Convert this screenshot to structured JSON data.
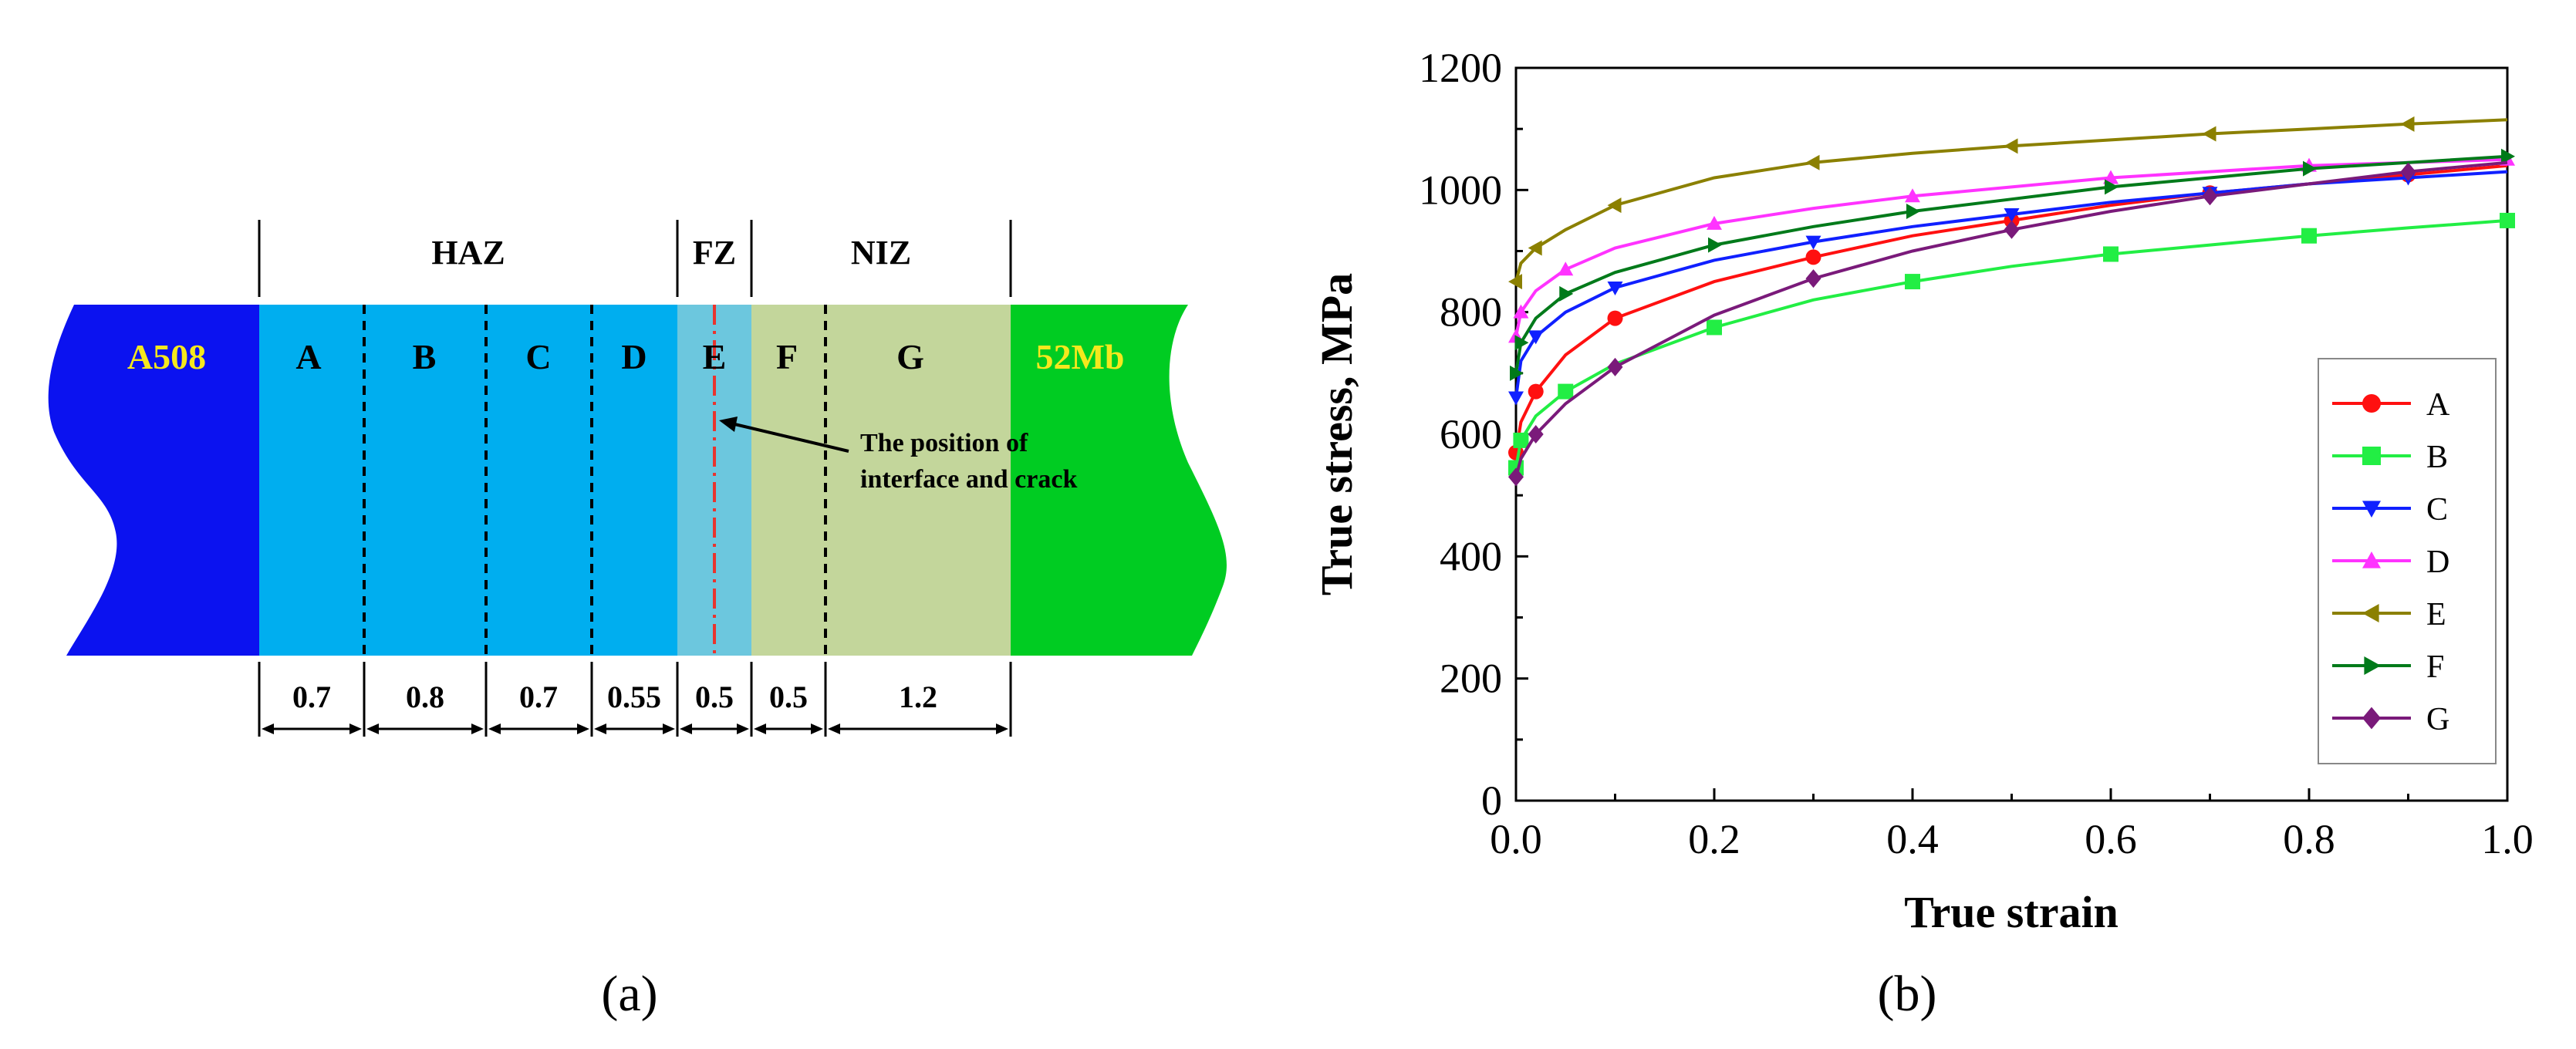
{
  "panel_a": {
    "caption": "(a)",
    "groups": {
      "haz": "HAZ",
      "fz": "FZ",
      "niz": "NIZ"
    },
    "base_metal": "A508",
    "weld_metal": "52Mb",
    "zones": [
      "A",
      "B",
      "C",
      "D",
      "E",
      "F",
      "G"
    ],
    "widths": [
      "0.7",
      "0.8",
      "0.7",
      "0.55",
      "0.5",
      "0.5",
      "1.2"
    ],
    "annotation": [
      "The position of",
      "interface and crack"
    ],
    "colors": {
      "a508": "#0b12f0",
      "haz": "#00aeef",
      "fz": "#6cc7de",
      "niz": "#c3d69b",
      "weld": "#00cc22",
      "label_yellow": "#f5e81d",
      "interface_line": "#e8342e"
    }
  },
  "panel_b": {
    "caption": "(b)"
  },
  "chart_data": {
    "type": "line",
    "title": "",
    "xlabel": "True strain",
    "ylabel": "True stress, MPa",
    "xlim": [
      0.0,
      1.0
    ],
    "ylim": [
      0,
      1200
    ],
    "xticks": [
      "0.0",
      "0.2",
      "0.4",
      "0.6",
      "0.8",
      "1.0"
    ],
    "yticks": [
      "0",
      "200",
      "400",
      "600",
      "800",
      "1000",
      "1200"
    ],
    "legend_position": "right",
    "series": [
      {
        "name": "A",
        "color": "#ff1010",
        "marker": "circle",
        "x": [
          0.0,
          0.005,
          0.02,
          0.05,
          0.1,
          0.2,
          0.3,
          0.4,
          0.5,
          0.6,
          0.7,
          0.8,
          0.9,
          1.0
        ],
        "y": [
          570,
          620,
          670,
          730,
          790,
          850,
          890,
          925,
          950,
          975,
          995,
          1010,
          1025,
          1040
        ]
      },
      {
        "name": "B",
        "color": "#22ee44",
        "marker": "square",
        "x": [
          0.0,
          0.005,
          0.02,
          0.05,
          0.1,
          0.2,
          0.3,
          0.4,
          0.5,
          0.6,
          0.7,
          0.8,
          0.9,
          1.0
        ],
        "y": [
          545,
          590,
          630,
          670,
          715,
          775,
          820,
          850,
          875,
          895,
          910,
          925,
          938,
          950
        ]
      },
      {
        "name": "C",
        "color": "#1020ff",
        "marker": "triangle-down",
        "x": [
          0.0,
          0.005,
          0.02,
          0.05,
          0.1,
          0.2,
          0.3,
          0.4,
          0.5,
          0.6,
          0.7,
          0.8,
          0.9,
          1.0
        ],
        "y": [
          660,
          720,
          760,
          800,
          840,
          885,
          915,
          940,
          960,
          980,
          995,
          1010,
          1020,
          1030
        ]
      },
      {
        "name": "D",
        "color": "#ff33ff",
        "marker": "triangle-up",
        "x": [
          0.0,
          0.005,
          0.02,
          0.05,
          0.1,
          0.2,
          0.3,
          0.4,
          0.5,
          0.6,
          0.7,
          0.8,
          0.9,
          1.0
        ],
        "y": [
          760,
          800,
          835,
          870,
          905,
          945,
          970,
          990,
          1005,
          1020,
          1030,
          1040,
          1045,
          1050
        ]
      },
      {
        "name": "E",
        "color": "#8b8000",
        "marker": "triangle-left",
        "x": [
          0.0,
          0.005,
          0.02,
          0.05,
          0.1,
          0.2,
          0.3,
          0.4,
          0.5,
          0.6,
          0.7,
          0.8,
          0.9,
          1.0
        ],
        "y": [
          850,
          880,
          905,
          935,
          975,
          1020,
          1045,
          1060,
          1072,
          1082,
          1092,
          1100,
          1108,
          1115
        ]
      },
      {
        "name": "F",
        "color": "#007a1a",
        "marker": "triangle-right",
        "x": [
          0.0,
          0.005,
          0.02,
          0.05,
          0.1,
          0.2,
          0.3,
          0.4,
          0.5,
          0.6,
          0.7,
          0.8,
          0.9,
          1.0
        ],
        "y": [
          700,
          750,
          790,
          830,
          865,
          910,
          940,
          965,
          985,
          1005,
          1020,
          1035,
          1045,
          1055
        ]
      },
      {
        "name": "G",
        "color": "#7a1a7a",
        "marker": "diamond",
        "x": [
          0.0,
          0.005,
          0.02,
          0.05,
          0.1,
          0.2,
          0.3,
          0.4,
          0.5,
          0.6,
          0.7,
          0.8,
          0.9,
          1.0
        ],
        "y": [
          530,
          560,
          600,
          650,
          710,
          795,
          855,
          900,
          935,
          965,
          990,
          1010,
          1030,
          1045
        ]
      }
    ]
  }
}
